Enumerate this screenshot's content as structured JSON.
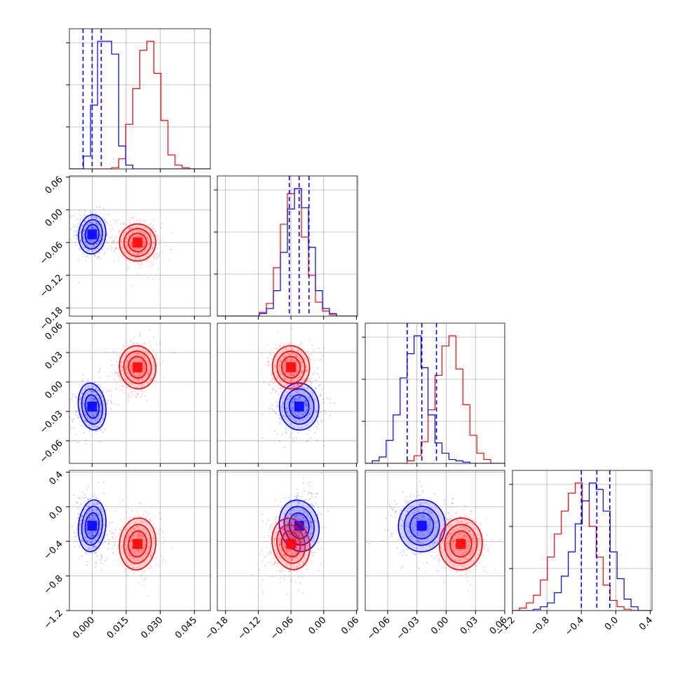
{
  "chart_data": {
    "type": "corner",
    "grid": true,
    "legend": "none",
    "colors": {
      "series_a": "#0000ff",
      "series_b": "#ff0000"
    },
    "params": [
      {
        "range": [
          -0.01,
          0.052
        ],
        "ticks": [
          0.0,
          0.015,
          0.03,
          0.045
        ],
        "tick_labels": [
          "0.000",
          "0.015",
          "0.030",
          "0.045"
        ]
      },
      {
        "range": [
          -0.195,
          0.062
        ],
        "ticks": [
          -0.18,
          -0.12,
          -0.06,
          0.0,
          0.06
        ],
        "tick_labels": [
          "−0.18",
          "−0.12",
          "−0.06",
          "0.00",
          "0.06"
        ]
      },
      {
        "range": [
          -0.083,
          0.06
        ],
        "ticks": [
          -0.06,
          -0.03,
          0.0,
          0.03,
          0.06
        ],
        "tick_labels": [
          "−0.06",
          "−0.03",
          "0.00",
          "0.03",
          "0.06"
        ]
      },
      {
        "range": [
          -1.2,
          0.42
        ],
        "ticks": [
          -1.2,
          -0.8,
          -0.4,
          0.0,
          0.4
        ],
        "tick_labels": [
          "−1.2",
          "−0.8",
          "−0.4",
          "0.0",
          "0.4"
        ]
      }
    ],
    "series": [
      {
        "color": "#0000ff",
        "mean": [
          0.0,
          -0.045,
          -0.025,
          -0.22
        ],
        "sigma": [
          0.003,
          0.018,
          0.012,
          0.15
        ],
        "quantiles": [
          [
            -0.004,
            0.0,
            0.004
          ],
          [
            -0.063,
            -0.045,
            -0.027
          ],
          [
            -0.04,
            -0.025,
            -0.01
          ],
          [
            -0.4,
            -0.22,
            -0.07
          ]
        ]
      },
      {
        "color": "#ff0000",
        "mean": [
          0.02,
          -0.06,
          0.015,
          -0.43
        ],
        "sigma": [
          0.004,
          0.017,
          0.011,
          0.15
        ],
        "quantiles": []
      }
    ],
    "hist_counts": {
      "0": {
        "blue": [
          0,
          0,
          0.1,
          0.5,
          1,
          1,
          0.9,
          0.18,
          0.03,
          0,
          0,
          0,
          0,
          0,
          0,
          0,
          0,
          0,
          0,
          0
        ],
        "red": [
          0,
          0,
          0,
          0,
          0,
          0,
          0.01,
          0.08,
          0.35,
          0.63,
          0.93,
          1,
          0.75,
          0.38,
          0.11,
          0.03,
          0.01,
          0,
          0,
          0
        ]
      },
      "1": {
        "blue": [
          0,
          0,
          0,
          0,
          0,
          0,
          0.02,
          0.06,
          0.2,
          0.5,
          0.84,
          1,
          0.85,
          0.54,
          0.2,
          0.06,
          0.02,
          0,
          0,
          0
        ],
        "red": [
          0,
          0,
          0,
          0,
          0,
          0,
          0.03,
          0.1,
          0.38,
          0.72,
          0.96,
          1,
          0.62,
          0.32,
          0.11,
          0.04,
          0.01,
          0,
          0,
          0
        ]
      },
      "2": {
        "blue": [
          0,
          0.02,
          0.05,
          0.18,
          0.38,
          0.67,
          0.86,
          1,
          0.75,
          0.38,
          0.16,
          0.08,
          0.03,
          0.02,
          0.01,
          0,
          0,
          0,
          0,
          0
        ],
        "red": [
          0,
          0,
          0,
          0,
          0,
          0,
          0.02,
          0.06,
          0.17,
          0.42,
          0.69,
          0.92,
          1,
          0.74,
          0.46,
          0.22,
          0.08,
          0.03,
          0,
          0
        ]
      },
      "3": {
        "blue": [
          0,
          0,
          0,
          0.01,
          0.03,
          0.06,
          0.14,
          0.27,
          0.46,
          0.68,
          0.86,
          1,
          0.95,
          0.78,
          0.46,
          0.25,
          0.09,
          0.03,
          0,
          0
        ],
        "red": [
          0,
          0.02,
          0.06,
          0.12,
          0.24,
          0.42,
          0.6,
          0.78,
          0.92,
          1,
          0.86,
          0.66,
          0.42,
          0.2,
          0.08,
          0.03,
          0.01,
          0,
          0,
          0
        ]
      }
    }
  }
}
